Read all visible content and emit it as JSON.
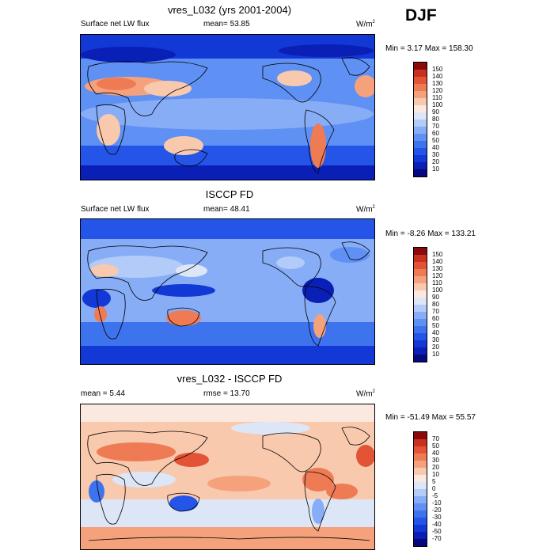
{
  "season": "DJF",
  "panels": [
    {
      "title": "vres_L032 (yrs 2001-2004)",
      "left_label": "Surface net LW flux",
      "center_label": "mean=  53.85",
      "units": "W/m",
      "units_sup": "2",
      "min_max": "Min =   3.17 Max = 158.30",
      "colorbar": {
        "colors": [
          "#08087e",
          "#0a1fb5",
          "#1238d6",
          "#2555e8",
          "#3e73ee",
          "#5f90f3",
          "#86adf6",
          "#b3cbf8",
          "#dde6f7",
          "#fbe9df",
          "#f9c9ae",
          "#f5a27c",
          "#ef7b55",
          "#e35335",
          "#c8301f",
          "#8a0a0a"
        ],
        "labels": [
          "150",
          "140",
          "130",
          "120",
          "110",
          "100",
          "90",
          "80",
          "70",
          "60",
          "50",
          "40",
          "30",
          "20",
          "10"
        ]
      }
    },
    {
      "title": "ISCCP FD",
      "left_label": "Surface net LW flux",
      "center_label": "mean=  48.41",
      "units": "W/m",
      "units_sup": "2",
      "min_max": "Min =  -8.26 Max = 133.21",
      "colorbar": {
        "colors": [
          "#08087e",
          "#0a1fb5",
          "#1238d6",
          "#2555e8",
          "#3e73ee",
          "#5f90f3",
          "#86adf6",
          "#b3cbf8",
          "#dde6f7",
          "#fbe9df",
          "#f9c9ae",
          "#f5a27c",
          "#ef7b55",
          "#e35335",
          "#c8301f",
          "#8a0a0a"
        ],
        "labels": [
          "150",
          "140",
          "130",
          "120",
          "110",
          "100",
          "90",
          "80",
          "70",
          "60",
          "50",
          "40",
          "30",
          "20",
          "10"
        ]
      }
    },
    {
      "title": "vres_L032 - ISCCP FD",
      "left_label": "mean =   5.44",
      "center_label": "rmse =  13.70",
      "units": "W/m",
      "units_sup": "2",
      "min_max": "Min = -51.49 Max =  55.57",
      "colorbar": {
        "colors": [
          "#08087e",
          "#0a1fb5",
          "#1238d6",
          "#2555e8",
          "#3e73ee",
          "#5f90f3",
          "#86adf6",
          "#b3cbf8",
          "#dde6f7",
          "#fbe9df",
          "#f9c9ae",
          "#f5a27c",
          "#ef7b55",
          "#e35335",
          "#c8301f",
          "#8a0a0a"
        ],
        "labels": [
          "70",
          "50",
          "40",
          "30",
          "20",
          "10",
          "5",
          "0",
          "-5",
          "-10",
          "-20",
          "-30",
          "-40",
          "-50",
          "-70"
        ]
      }
    }
  ]
}
